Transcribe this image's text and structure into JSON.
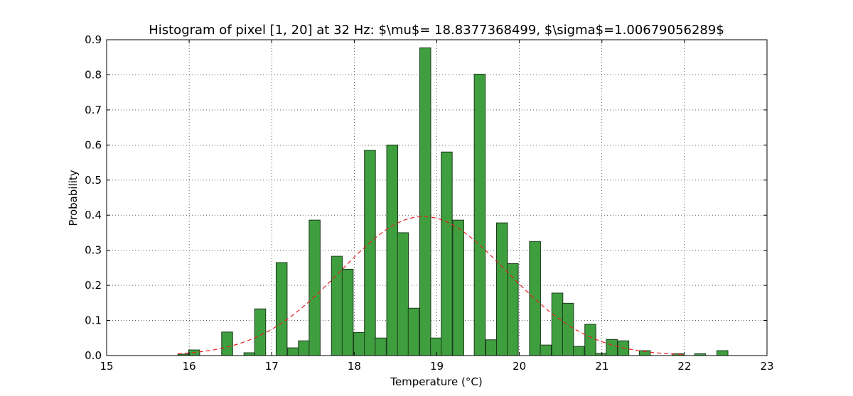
{
  "chart_data": {
    "type": "bar",
    "title": "Histogram of pixel [1, 20] at 32 Hz: $\\mu$= 18.8377368499, $\\sigma$=1.00679056289$",
    "xlabel": "Temperature (°C)",
    "ylabel": "Probability",
    "xlim": [
      15,
      23
    ],
    "ylim": [
      0,
      0.9
    ],
    "xticks": [
      "15",
      "16",
      "17",
      "18",
      "19",
      "20",
      "21",
      "22",
      "23"
    ],
    "yticks": [
      "0.0",
      "0.1",
      "0.2",
      "0.3",
      "0.4",
      "0.5",
      "0.6",
      "0.7",
      "0.8",
      "0.9"
    ],
    "grid": true,
    "bar_color": "#3f9f3f",
    "bar_edge_color": "#1a3a1a",
    "curve_color": "#e82020",
    "bin_width": 0.1333,
    "series": [
      {
        "values": [
          {
            "x": 15.93,
            "y": 0.004
          },
          {
            "x": 16.06,
            "y": 0.016
          },
          {
            "x": 16.46,
            "y": 0.067
          },
          {
            "x": 16.73,
            "y": 0.008
          },
          {
            "x": 16.86,
            "y": 0.133
          },
          {
            "x": 17.12,
            "y": 0.265
          },
          {
            "x": 17.26,
            "y": 0.022
          },
          {
            "x": 17.39,
            "y": 0.042
          },
          {
            "x": 17.52,
            "y": 0.386
          },
          {
            "x": 17.79,
            "y": 0.283
          },
          {
            "x": 17.92,
            "y": 0.246
          },
          {
            "x": 18.06,
            "y": 0.066
          },
          {
            "x": 18.19,
            "y": 0.585
          },
          {
            "x": 18.32,
            "y": 0.05
          },
          {
            "x": 18.46,
            "y": 0.6
          },
          {
            "x": 18.59,
            "y": 0.35
          },
          {
            "x": 18.72,
            "y": 0.135
          },
          {
            "x": 18.86,
            "y": 0.877
          },
          {
            "x": 18.99,
            "y": 0.05
          },
          {
            "x": 19.12,
            "y": 0.58
          },
          {
            "x": 19.26,
            "y": 0.386
          },
          {
            "x": 19.52,
            "y": 0.802
          },
          {
            "x": 19.66,
            "y": 0.045
          },
          {
            "x": 19.79,
            "y": 0.378
          },
          {
            "x": 19.92,
            "y": 0.262
          },
          {
            "x": 20.19,
            "y": 0.325
          },
          {
            "x": 20.32,
            "y": 0.03
          },
          {
            "x": 20.46,
            "y": 0.178
          },
          {
            "x": 20.59,
            "y": 0.149
          },
          {
            "x": 20.72,
            "y": 0.026
          },
          {
            "x": 20.86,
            "y": 0.089
          },
          {
            "x": 20.99,
            "y": 0.006
          },
          {
            "x": 21.12,
            "y": 0.046
          },
          {
            "x": 21.26,
            "y": 0.042
          },
          {
            "x": 21.52,
            "y": 0.014
          },
          {
            "x": 21.92,
            "y": 0.005
          },
          {
            "x": 22.19,
            "y": 0.005
          },
          {
            "x": 22.46,
            "y": 0.014
          }
        ]
      }
    ],
    "fit_curve": {
      "type": "normal-pdf",
      "mu": 18.8377368499,
      "sigma": 1.00679056289,
      "style": "dashed",
      "x_range": [
        15.86,
        22.0
      ]
    }
  }
}
